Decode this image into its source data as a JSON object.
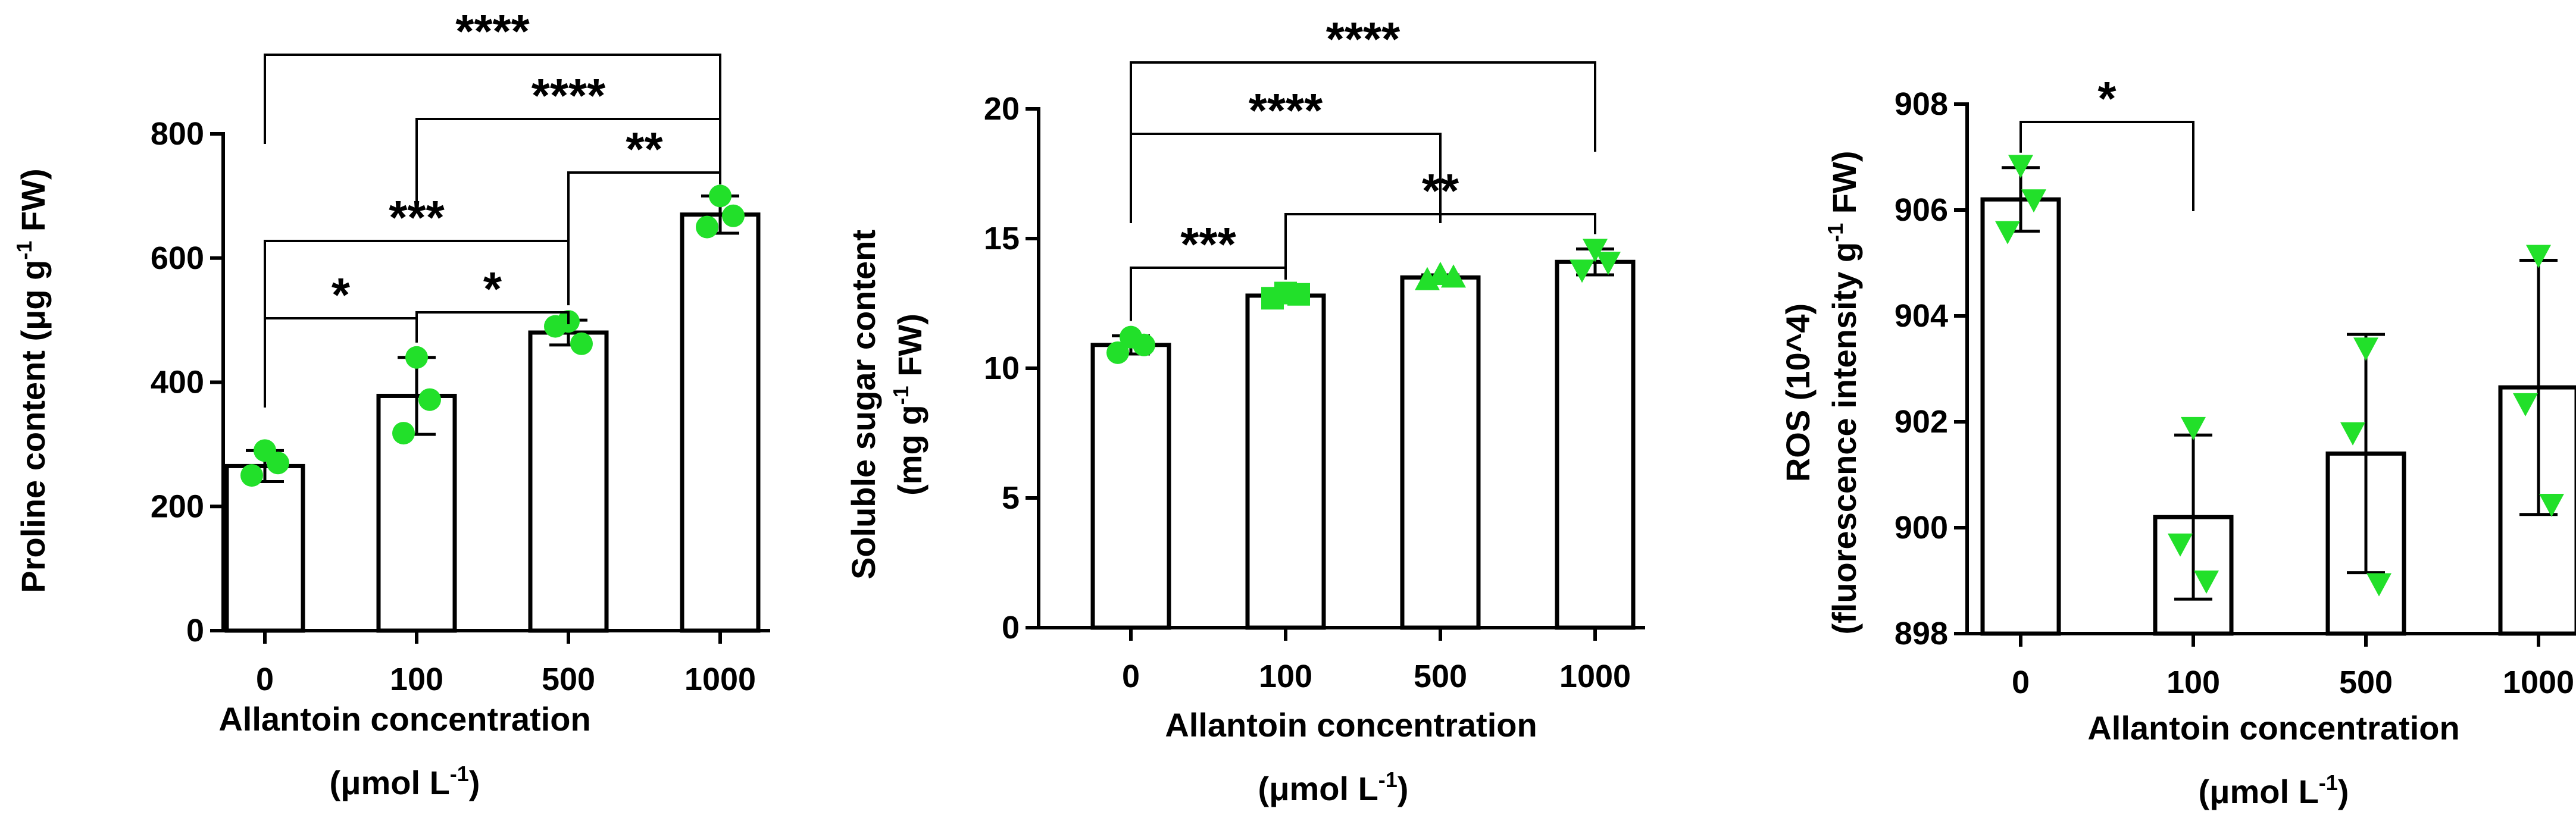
{
  "colors": {
    "bar_fill": "#ffffff",
    "bar_stroke": "#000000",
    "point": "#22e02a",
    "axis": "#000000"
  },
  "chart_data": [
    {
      "type": "bar",
      "categories": [
        "0",
        "100",
        "500",
        "1000"
      ],
      "values": [
        265,
        378,
        480,
        670
      ],
      "error": [
        25,
        62,
        20,
        30
      ],
      "points": [
        [
          290,
          250,
          270
        ],
        [
          440,
          318,
          372
        ],
        [
          498,
          490,
          462
        ],
        [
          700,
          650,
          668
        ]
      ],
      "marker": "circle",
      "ylim": [
        0,
        800
      ],
      "yticks": [
        "0",
        "200",
        "400",
        "600",
        "800"
      ],
      "ylabel_main": "Proline content (μg g",
      "ylabel_sup": "-1",
      "ylabel_end": " FW)",
      "xlabel_line1": "Allantoin concentration",
      "xlabel_line2_main": "(μmol L",
      "xlabel_line2_sup": "-1",
      "xlabel_line2_end": ")",
      "brackets": [
        {
          "from": 0,
          "to": 3,
          "label": "****"
        },
        {
          "from": 1,
          "to": 3,
          "label": "****"
        },
        {
          "from": 2,
          "to": 3,
          "label": "**"
        },
        {
          "from": 0,
          "to": 2,
          "label": "***"
        },
        {
          "from": 0,
          "to": 1,
          "label": "*"
        },
        {
          "from": 1,
          "to": 2,
          "label": "*"
        }
      ],
      "grid": false
    },
    {
      "type": "bar",
      "categories": [
        "0",
        "100",
        "500",
        "1000"
      ],
      "values": [
        10.9,
        12.8,
        13.5,
        14.1
      ],
      "error": [
        0.35,
        0.2,
        0.1,
        0.5
      ],
      "points": [
        [
          11.2,
          10.6,
          10.9
        ],
        [
          12.9,
          12.7,
          12.85
        ],
        [
          13.6,
          13.4,
          13.5
        ],
        [
          14.6,
          13.8,
          14.1
        ]
      ],
      "marker": "mixed",
      "ylim": [
        0,
        20
      ],
      "yticks": [
        "0",
        "5",
        "10",
        "15",
        "20"
      ],
      "ylabel_line1": "Soluble sugar content",
      "ylabel_line2_main": "(mg g",
      "ylabel_line2_sup": "-1",
      "ylabel_line2_end": " FW)",
      "xlabel_line1": "Allantoin concentration",
      "xlabel_line2_main": "(μmol L",
      "xlabel_line2_sup": "-1",
      "xlabel_line2_end": ")",
      "brackets": [
        {
          "from": 0,
          "to": 3,
          "label": "****"
        },
        {
          "from": 0,
          "to": 2,
          "label": "****"
        },
        {
          "from": 1,
          "to": 3,
          "label": "**"
        },
        {
          "from": 0,
          "to": 1,
          "label": "***"
        }
      ],
      "grid": false
    },
    {
      "type": "bar",
      "categories": [
        "0",
        "100",
        "500",
        "1000"
      ],
      "values": [
        906.2,
        900.2,
        901.4,
        902.65
      ],
      "error": [
        0.6,
        1.55,
        2.25,
        2.4
      ],
      "points": [
        [
          906.85,
          905.6,
          906.2
        ],
        [
          901.9,
          899.7,
          899.0
        ],
        [
          903.4,
          901.8,
          898.95
        ],
        [
          905.15,
          902.35,
          900.45
        ]
      ],
      "marker": "triangle-down",
      "ylim": [
        898,
        908
      ],
      "yticks": [
        "898",
        "900",
        "902",
        "904",
        "906",
        "908"
      ],
      "ylabel_line1": "ROS (10^4)",
      "ylabel_line2_main": "(fluorescence intensity g",
      "ylabel_line2_sup": "-1",
      "ylabel_line2_end": " FW)",
      "xlabel_line1": "Allantoin concentration",
      "xlabel_line2_main": "(μmol L",
      "xlabel_line2_sup": "-1",
      "xlabel_line2_end": ")",
      "brackets": [
        {
          "from": 0,
          "to": 1,
          "label": "*"
        }
      ],
      "grid": false
    }
  ]
}
